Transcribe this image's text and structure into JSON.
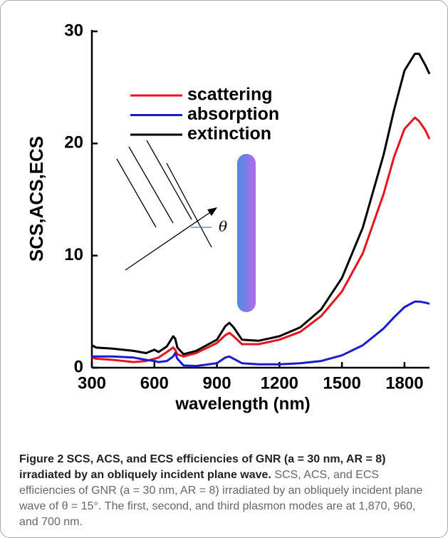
{
  "chart_data": {
    "type": "line",
    "x_label": "wavelength (nm)",
    "y_label": "SCS,ACS,ECS",
    "x": [
      300,
      320,
      400,
      500,
      560,
      600,
      620,
      660,
      690,
      700,
      710,
      740,
      800,
      900,
      940,
      960,
      980,
      1020,
      1100,
      1200,
      1300,
      1400,
      1500,
      1600,
      1700,
      1750,
      1800,
      1850,
      1870,
      1900,
      1920
    ],
    "series": [
      {
        "name": "scattering",
        "color": "#e8141c",
        "values": [
          0.9,
          0.8,
          0.7,
          0.5,
          0.6,
          0.8,
          0.9,
          1.4,
          1.8,
          1.6,
          1.2,
          1.0,
          1.3,
          2.2,
          2.9,
          3.1,
          2.8,
          2.1,
          2.1,
          2.5,
          3.2,
          4.6,
          6.8,
          10.2,
          15.5,
          18.8,
          21.3,
          22.3,
          22.0,
          21.2,
          20.4
        ]
      },
      {
        "name": "absorption",
        "color": "#1a1ad0",
        "values": [
          1.0,
          1.0,
          1.0,
          0.9,
          0.7,
          0.6,
          0.5,
          0.6,
          1.0,
          1.3,
          0.8,
          0.2,
          0.15,
          0.4,
          0.9,
          1.0,
          0.8,
          0.4,
          0.3,
          0.3,
          0.4,
          0.6,
          1.1,
          2.0,
          3.5,
          4.5,
          5.4,
          5.9,
          5.9,
          5.8,
          5.7
        ]
      },
      {
        "name": "extinction",
        "color": "#000000",
        "values": [
          2.0,
          1.8,
          1.7,
          1.5,
          1.3,
          1.6,
          1.4,
          1.9,
          2.8,
          2.6,
          1.8,
          1.2,
          1.5,
          2.5,
          3.7,
          4.0,
          3.6,
          2.5,
          2.4,
          2.8,
          3.6,
          5.2,
          8.0,
          12.5,
          19.0,
          23.0,
          26.5,
          28.0,
          28.0,
          27.0,
          26.2
        ]
      }
    ],
    "xlim": [
      300,
      1920
    ],
    "ylim": [
      0,
      30
    ],
    "xticks": [
      300,
      600,
      900,
      1200,
      1500,
      1800
    ],
    "yticks": [
      0,
      10,
      20,
      30
    ],
    "legend": "upper-left",
    "annotation": "θ"
  },
  "caption": {
    "title": "Figure 2 SCS, ACS, and ECS efficiencies of GNR (a = 30 nm, AR = 8) irradiated by an obliquely incident plane wave.",
    "body": "SCS, ACS, and ECS efficiencies of GNR (a = 30 nm, AR = 8) irradiated by an obliquely incident plane wave of θ = 15°. The first, second, and third plasmon modes are at 1,870, 960, and 700 nm."
  }
}
